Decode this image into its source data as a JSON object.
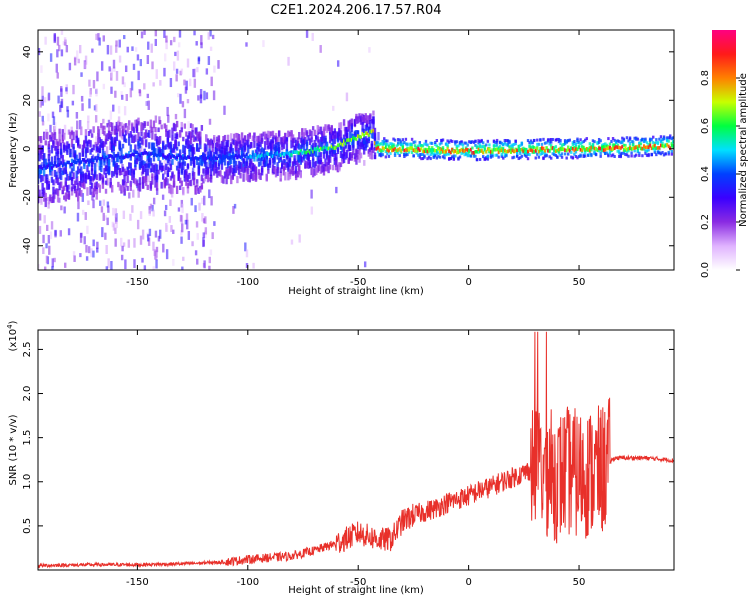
{
  "title": "C2E1.2024.206.17.57.R04",
  "chart_data": [
    {
      "type": "heatmap",
      "xlabel": "Height of straight line (km)",
      "ylabel": "Frequency (Hz)",
      "xlim": [
        -195,
        93
      ],
      "ylim": [
        -50,
        49
      ],
      "xticks": [
        -150,
        -100,
        -50,
        0,
        50
      ],
      "yticks": [
        -40,
        -20,
        0,
        20,
        40
      ],
      "colorbar": {
        "label": "Normalized spectral amplitude",
        "range": [
          0,
          1
        ],
        "ticks": [
          0.0,
          0.2,
          0.4,
          0.6,
          0.8
        ],
        "colormap": [
          "#ffffff",
          "#e0b3ff",
          "#8a2be2",
          "#3a00ff",
          "#0040ff",
          "#00e0ff",
          "#00ff40",
          "#c8ff00",
          "#ff8000",
          "#ff1a1a",
          "#ff0080"
        ]
      },
      "ridge": [
        {
          "x": -195,
          "f": -8
        },
        {
          "x": -150,
          "f": -2
        },
        {
          "x": -120,
          "f": -4
        },
        {
          "x": -100,
          "f": -3
        },
        {
          "x": -80,
          "f": -2
        },
        {
          "x": -60,
          "f": 1
        },
        {
          "x": -50,
          "f": 5
        },
        {
          "x": -43,
          "f": 7
        },
        {
          "x": -42,
          "f": 0
        },
        {
          "x": 0,
          "f": -1
        },
        {
          "x": 60,
          "f": 0
        },
        {
          "x": 93,
          "f": 1
        }
      ]
    },
    {
      "type": "line",
      "xlabel": "Height of straight line (km)",
      "ylabel": "SNR (10 * v/v)",
      "yscale_label": "(x10",
      "yscale_exp": "4",
      "yscale_close": ")",
      "xlim": [
        -195,
        93
      ],
      "ylim": [
        0,
        2.72
      ],
      "xticks": [
        -150,
        -100,
        -50,
        0,
        50
      ],
      "yticks": [
        0.5,
        1.0,
        1.5,
        2.0,
        2.5
      ],
      "ytick_labels": [
        "0.5",
        "1.0",
        "1.5",
        "2.0",
        "2.5"
      ],
      "color": "#e8302a",
      "series": [
        {
          "x": [
            -195,
            -170,
            -150,
            -130,
            -110,
            -100,
            -90,
            -80,
            -70,
            -60,
            -55,
            -50,
            -45,
            -40,
            -35,
            -30,
            -25,
            -20,
            -15,
            -10,
            -5,
            0,
            5,
            10,
            15,
            20,
            25,
            28,
            30,
            33,
            36,
            40,
            45,
            50,
            55,
            60,
            63,
            66,
            70,
            80,
            90,
            93
          ],
          "y": [
            0.05,
            0.06,
            0.06,
            0.07,
            0.09,
            0.12,
            0.14,
            0.16,
            0.22,
            0.3,
            0.36,
            0.42,
            0.38,
            0.34,
            0.35,
            0.55,
            0.62,
            0.66,
            0.7,
            0.76,
            0.8,
            0.84,
            0.9,
            0.94,
            1.0,
            1.05,
            1.1,
            1.14,
            1.18,
            1.15,
            1.1,
            1.05,
            1.12,
            1.08,
            1.1,
            1.12,
            1.2,
            1.27,
            1.27,
            1.27,
            1.25,
            1.24
          ]
        }
      ]
    }
  ]
}
